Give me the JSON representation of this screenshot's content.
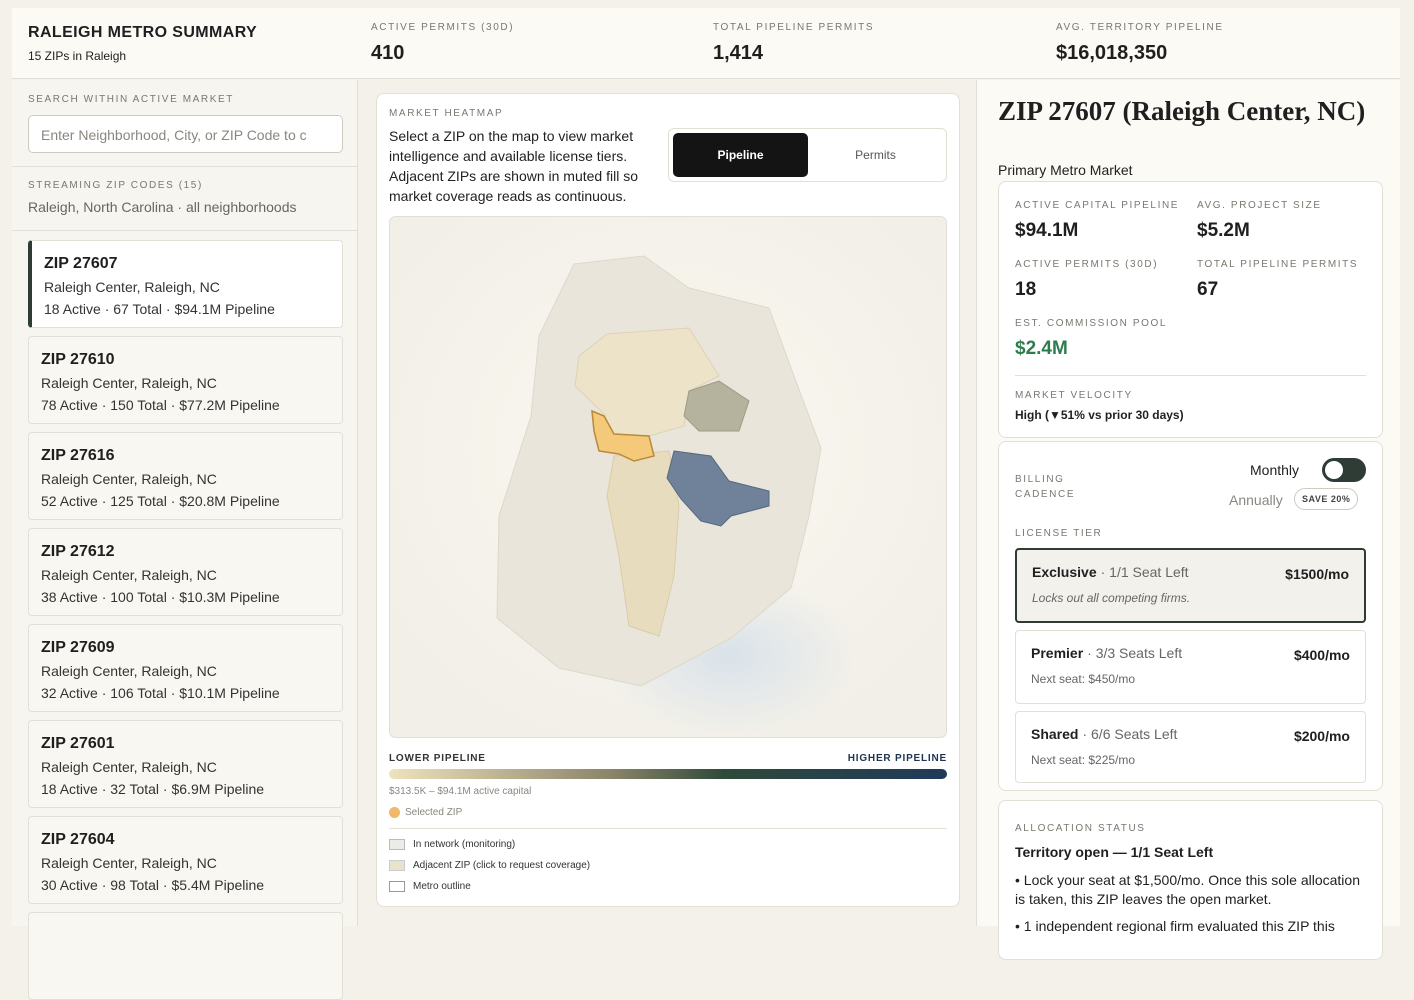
{
  "header": {
    "title": "RALEIGH METRO SUMMARY",
    "subtitle": "15 ZIPs in Raleigh",
    "stats": [
      {
        "label": "ACTIVE PERMITS (30D)",
        "value": "410"
      },
      {
        "label": "TOTAL PIPELINE PERMITS",
        "value": "1,414"
      },
      {
        "label": "AVG. TERRITORY PIPELINE",
        "value": "$16,018,350"
      }
    ]
  },
  "search": {
    "label": "SEARCH WITHIN ACTIVE MARKET",
    "placeholder": "Enter Neighborhood, City, or ZIP Code to c"
  },
  "zip_list": {
    "label": "STREAMING ZIP CODES (15)",
    "subtitle": "Raleigh, North Carolina · all neighborhoods",
    "items": [
      {
        "zip": "ZIP 27607",
        "place": "Raleigh Center, Raleigh, NC",
        "details": "18 Active · 67 Total · $94.1M Pipeline"
      },
      {
        "zip": "ZIP 27610",
        "place": "Raleigh Center, Raleigh, NC",
        "details": "78 Active · 150 Total · $77.2M Pipeline"
      },
      {
        "zip": "ZIP 27616",
        "place": "Raleigh Center, Raleigh, NC",
        "details": "52 Active · 125 Total · $20.8M Pipeline"
      },
      {
        "zip": "ZIP 27612",
        "place": "Raleigh Center, Raleigh, NC",
        "details": "38 Active · 100 Total · $10.3M Pipeline"
      },
      {
        "zip": "ZIP 27609",
        "place": "Raleigh Center, Raleigh, NC",
        "details": "32 Active · 106 Total · $10.1M Pipeline"
      },
      {
        "zip": "ZIP 27601",
        "place": "Raleigh Center, Raleigh, NC",
        "details": "18 Active · 32 Total · $6.9M Pipeline"
      },
      {
        "zip": "ZIP 27604",
        "place": "Raleigh Center, Raleigh, NC",
        "details": "30 Active · 98 Total · $5.4M Pipeline"
      }
    ]
  },
  "heatmap": {
    "label": "MARKET HEATMAP",
    "description": "Select a ZIP on the map to view market intelligence and available license tiers. Adjacent ZIPs are shown in muted fill so market coverage reads as continuous.",
    "toggle": [
      "Pipeline",
      "Permits"
    ],
    "legend_low": "LOWER PIPELINE",
    "legend_high": "HIGHER PIPELINE",
    "range": "$313.5K – $94.1M active capital",
    "selected": "Selected ZIP",
    "legend_items": [
      "In network (monitoring)",
      "Adjacent ZIP (click to request coverage)",
      "Metro outline"
    ]
  },
  "detail": {
    "title": "ZIP 27607 (Raleigh Center, NC)",
    "subtitle": "Primary Metro Market",
    "metrics": [
      {
        "label": "ACTIVE CAPITAL PIPELINE",
        "value": "$94.1M"
      },
      {
        "label": "AVG. PROJECT SIZE",
        "value": "$5.2M"
      },
      {
        "label": "ACTIVE PERMITS (30D)",
        "value": "18"
      },
      {
        "label": "TOTAL PIPELINE PERMITS",
        "value": "67"
      },
      {
        "label": "EST. COMMISSION POOL",
        "value": "$2.4M"
      }
    ],
    "velocity_label": "MARKET VELOCITY",
    "velocity_value": "High (▼51% vs prior 30 days)",
    "billing_label": "BILLING CADENCE",
    "monthly": "Monthly",
    "annually": "Annually",
    "save": "SAVE 20%",
    "license_label": "LICENSE TIER",
    "tiers": [
      {
        "name": "Exclusive",
        "seats": "· 1/1 Seat Left",
        "price": "$1500/mo",
        "note": "Locks out all competing firms."
      },
      {
        "name": "Premier",
        "seats": "· 3/3 Seats Left",
        "price": "$400/mo",
        "note": "Next seat: $450/mo"
      },
      {
        "name": "Shared",
        "seats": "· 6/6 Seats Left",
        "price": "$200/mo",
        "note": "Next seat: $225/mo"
      }
    ],
    "allocation_label": "ALLOCATION STATUS",
    "allocation_title": "Territory open — 1/1 Seat Left",
    "bullets": [
      "• Lock your seat at $1,500/mo. Once this sole allocation is taken, this ZIP leaves the open market.",
      "• 1 independent regional firm evaluated this ZIP this"
    ]
  }
}
